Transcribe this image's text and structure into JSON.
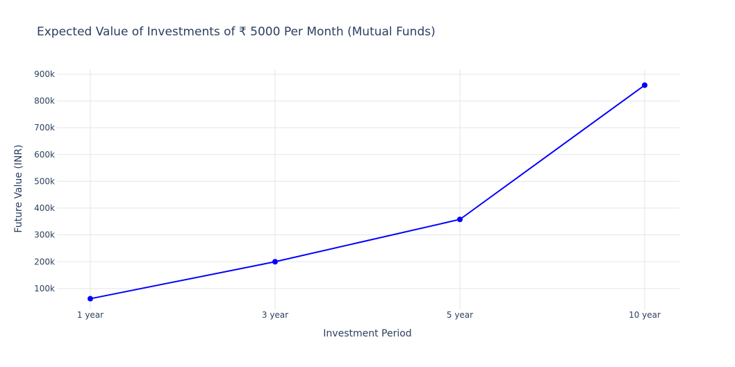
{
  "chart_data": {
    "type": "line",
    "title": "Expected Value of Investments of ₹ 5000 Per Month (Mutual Funds)",
    "xlabel": "Investment Period",
    "ylabel": "Future Value (INR)",
    "categories": [
      "1 year",
      "3 year",
      "5 year",
      "10 year"
    ],
    "series": [
      {
        "values": [
          62000,
          200000,
          358000,
          859000
        ],
        "color": "#0000ff"
      }
    ],
    "yticks": [
      100000,
      200000,
      300000,
      400000,
      500000,
      600000,
      700000,
      800000,
      900000
    ],
    "ytick_labels": [
      "100k",
      "200k",
      "300k",
      "400k",
      "500k",
      "600k",
      "700k",
      "800k",
      "900k"
    ],
    "ylim": [
      22000,
      918000
    ],
    "grid": true,
    "legend": "none",
    "markers": true
  }
}
